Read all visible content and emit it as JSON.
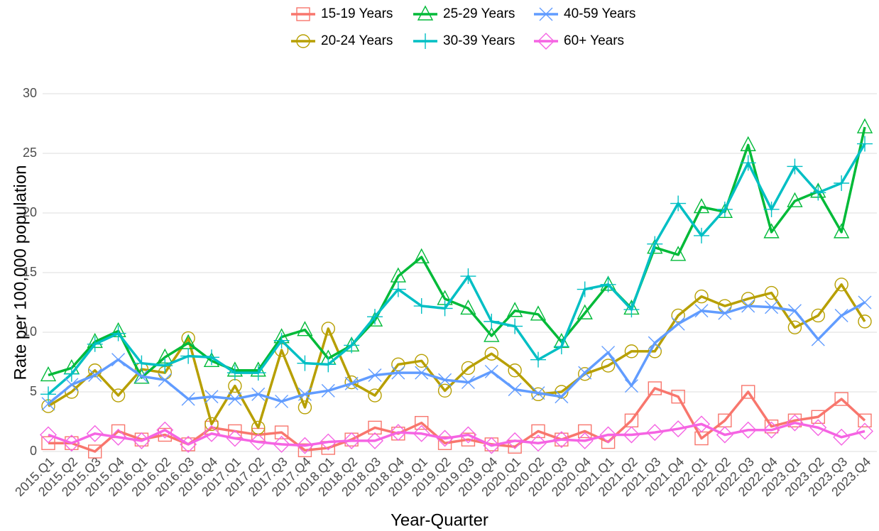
{
  "chart_data": {
    "type": "line",
    "categories": [
      "2015.Q1",
      "2015.Q2",
      "2015.Q3",
      "2015.Q4",
      "2016.Q1",
      "2016.Q2",
      "2016.Q3",
      "2016.Q4",
      "2017.Q1",
      "2017.Q2",
      "2017.Q3",
      "2017.Q4",
      "2018.Q1",
      "2018.Q2",
      "2018.Q3",
      "2018.Q4",
      "2019.Q1",
      "2019.Q2",
      "2019.Q3",
      "2019.Q4",
      "2020.Q1",
      "2020.Q2",
      "2020.Q3",
      "2020.Q4",
      "2021.Q1",
      "2021.Q2",
      "2021.Q3",
      "2021.Q4",
      "2022.Q1",
      "2022.Q2",
      "2022.Q3",
      "2022.Q4",
      "2023.Q1",
      "2023.Q2",
      "2023.Q3",
      "2023.Q4"
    ],
    "x_label": "Year-Quarter",
    "y_label": "Rate per 100,000 population",
    "ylim": [
      0,
      30
    ],
    "yticks": [
      0,
      5,
      10,
      15,
      20,
      25,
      30
    ],
    "grid": true,
    "series": [
      {
        "name": "15-19 Years",
        "color": "#F8766D",
        "marker": "square",
        "values": [
          0.7,
          0.7,
          0.0,
          1.7,
          1.0,
          1.4,
          0.6,
          2.0,
          1.7,
          1.4,
          1.6,
          0.1,
          0.3,
          1.0,
          2.0,
          1.5,
          2.4,
          0.7,
          1.0,
          0.6,
          0.4,
          1.7,
          1.0,
          1.7,
          0.8,
          2.6,
          5.3,
          4.6,
          1.1,
          2.6,
          5.0,
          2.1,
          2.6,
          2.9,
          4.4,
          2.6
        ]
      },
      {
        "name": "20-24 Years",
        "color": "#B79F00",
        "marker": "circle",
        "values": [
          3.8,
          5.0,
          6.8,
          4.7,
          6.9,
          6.6,
          9.5,
          2.3,
          5.5,
          2.0,
          8.5,
          3.7,
          10.3,
          5.8,
          4.7,
          7.3,
          7.6,
          5.1,
          7.0,
          8.2,
          6.8,
          4.8,
          5.0,
          6.5,
          7.2,
          8.4,
          8.4,
          11.4,
          13.0,
          12.2,
          12.8,
          13.3,
          10.4,
          11.4,
          14.0,
          10.9
        ]
      },
      {
        "name": "25-29 Years",
        "color": "#00BA38",
        "marker": "triangle",
        "values": [
          6.4,
          7.0,
          9.2,
          10.1,
          6.2,
          7.9,
          9.1,
          7.6,
          6.8,
          6.8,
          9.6,
          10.2,
          7.8,
          8.9,
          11.0,
          14.7,
          16.3,
          12.8,
          12.0,
          9.7,
          11.8,
          11.5,
          9.2,
          11.6,
          14.0,
          12.0,
          17.1,
          16.5,
          20.5,
          20.1,
          25.7,
          18.4,
          21.0,
          21.8,
          18.4,
          27.2
        ]
      },
      {
        "name": "30-39 Years",
        "color": "#00BFC4",
        "marker": "plus",
        "values": [
          4.8,
          6.5,
          9.0,
          9.9,
          7.4,
          7.2,
          8.0,
          7.9,
          6.6,
          6.6,
          9.3,
          7.4,
          7.3,
          8.9,
          11.3,
          13.6,
          12.2,
          12.0,
          14.7,
          10.9,
          10.5,
          7.7,
          8.8,
          13.6,
          14.0,
          11.9,
          17.4,
          20.8,
          18.1,
          20.3,
          24.2,
          20.3,
          23.9,
          21.7,
          22.5,
          25.8
        ]
      },
      {
        "name": "40-59 Years",
        "color": "#619CFF",
        "marker": "cross",
        "values": [
          4.0,
          5.6,
          6.4,
          7.7,
          6.3,
          6.0,
          4.4,
          4.6,
          4.4,
          4.8,
          4.2,
          4.8,
          5.1,
          5.7,
          6.4,
          6.6,
          6.6,
          6.0,
          5.8,
          6.7,
          5.2,
          4.9,
          4.6,
          6.6,
          8.3,
          5.5,
          9.1,
          10.7,
          11.8,
          11.6,
          12.2,
          12.1,
          11.8,
          9.4,
          11.4,
          12.5
        ]
      },
      {
        "name": "60+ Years",
        "color": "#F564E3",
        "marker": "diamond",
        "values": [
          1.4,
          0.7,
          1.5,
          1.2,
          0.9,
          1.8,
          0.6,
          1.5,
          1.1,
          0.8,
          0.6,
          0.5,
          0.8,
          0.9,
          0.9,
          1.6,
          1.5,
          1.1,
          1.4,
          0.5,
          0.9,
          0.7,
          1.0,
          0.9,
          1.4,
          1.4,
          1.6,
          1.9,
          2.3,
          1.4,
          1.8,
          1.8,
          2.4,
          2.0,
          1.2,
          1.7
        ]
      }
    ]
  }
}
